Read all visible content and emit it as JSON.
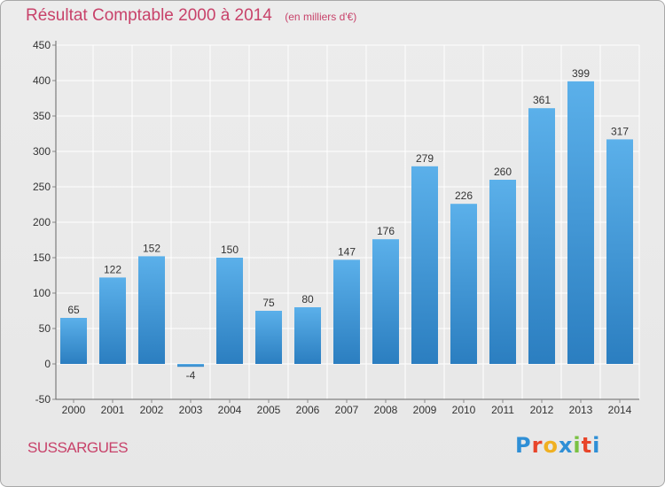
{
  "header": {
    "title": "Résultat Comptable 2000 à 2014",
    "subtitle": "(en milliers d'€)"
  },
  "commune": "SUSSARGUES",
  "logo": {
    "text": "Proxiti",
    "colors": [
      "#2f8fd6",
      "#e8452a",
      "#f0b021",
      "#2f8fd6",
      "#7ac143",
      "#e8452a",
      "#2f8fd6"
    ]
  },
  "colors": {
    "bar_light": "#5bb0ea",
    "bar_dark": "#2b7ec0",
    "grid": "#ffffff",
    "accent": "#c8426a"
  },
  "chart_data": {
    "type": "bar",
    "categories": [
      "2000",
      "2001",
      "2002",
      "2003",
      "2004",
      "2005",
      "2006",
      "2007",
      "2008",
      "2009",
      "2010",
      "2011",
      "2012",
      "2013",
      "2014"
    ],
    "values": [
      65,
      122,
      152,
      -4,
      150,
      75,
      80,
      147,
      176,
      279,
      226,
      260,
      361,
      399,
      317
    ],
    "data_labels": [
      "65",
      "122",
      "152",
      "-4",
      "150",
      "75",
      "80",
      "147",
      "176",
      "279",
      "226",
      "260",
      "361",
      "399",
      "317"
    ],
    "ylim": [
      -50,
      450
    ],
    "yticks": [
      -50,
      0,
      50,
      100,
      150,
      200,
      250,
      300,
      350,
      400,
      450
    ],
    "grid": true,
    "title": "Résultat Comptable 2000 à 2014",
    "xlabel": "",
    "ylabel": ""
  }
}
